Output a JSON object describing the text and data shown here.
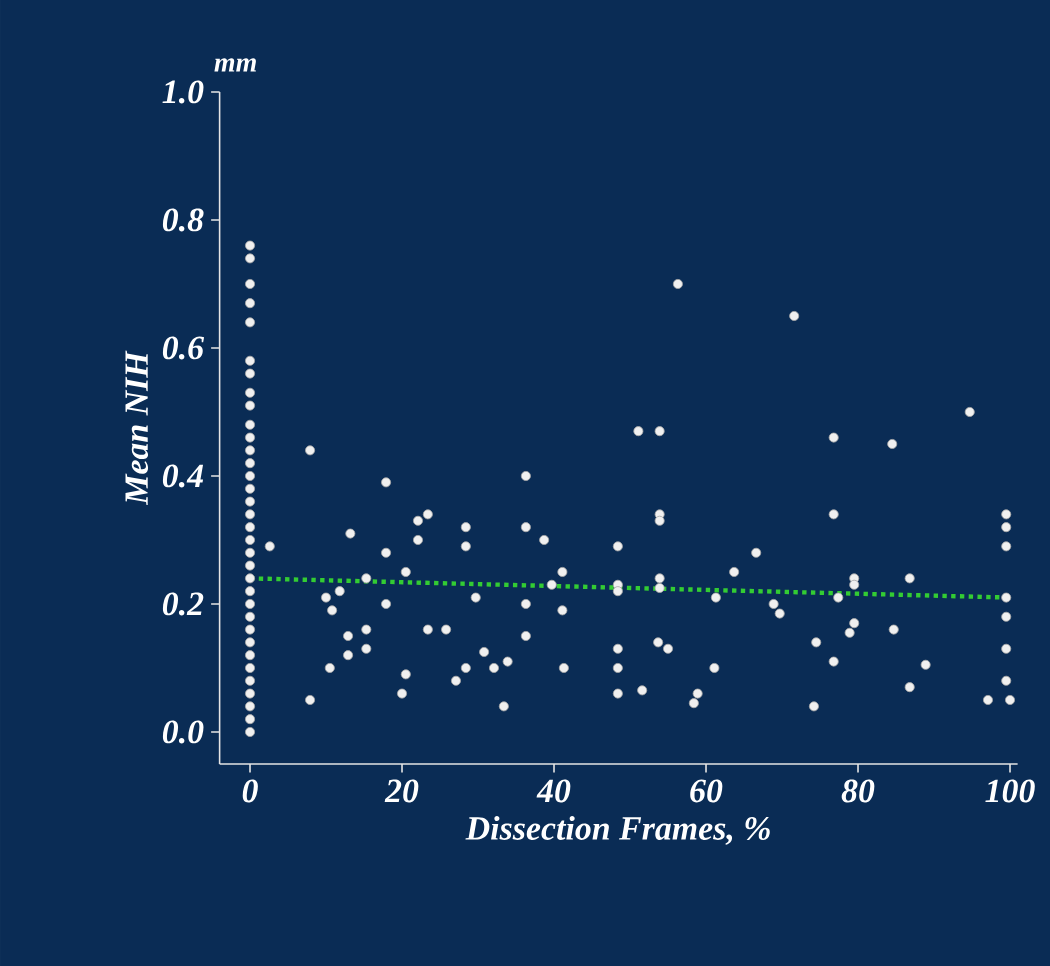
{
  "chart_data": {
    "type": "scatter",
    "xlabel": "Dissection Frames, %",
    "ylabel": "Mean NIH",
    "annotations": [
      "mm"
    ],
    "xlim": [
      -4,
      101
    ],
    "ylim": [
      -0.05,
      1.0
    ],
    "xticks": [
      0,
      20,
      40,
      60,
      80,
      100
    ],
    "yticks": [
      {
        "value": 0,
        "label": "0.0"
      },
      {
        "value": 0.2,
        "label": "0.2"
      },
      {
        "value": 0.4,
        "label": "0.4"
      },
      {
        "value": 0.6,
        "label": "0.6"
      },
      {
        "value": 0.8,
        "label": "0.8"
      },
      {
        "value": 1.0,
        "label": "1.0"
      }
    ],
    "grid": false,
    "series": [
      {
        "color": "#f0f0f0",
        "marker": "circle",
        "x": [
          0,
          0,
          0,
          0,
          0,
          0,
          0,
          0,
          0,
          0,
          0,
          0,
          0,
          0,
          0,
          0,
          0,
          0,
          0,
          0,
          0,
          0,
          0,
          0,
          0,
          0,
          0,
          0,
          0,
          0,
          0,
          0,
          0,
          0
        ],
        "values": [
          0.76,
          0.74,
          0.7,
          0.67,
          0.64,
          0.58,
          0.56,
          0.53,
          0.51,
          0.48,
          0.46,
          0.44,
          0.42,
          0.4,
          0.38,
          0.36,
          0.34,
          0.32,
          0.3,
          0.28,
          0.26,
          0.24,
          0.22,
          0.2,
          0.18,
          0.16,
          0.14,
          0.12,
          0.1,
          0.08,
          0.06,
          0.04,
          0.02,
          0.0
        ]
      },
      {
        "color": "#f0f0f0",
        "marker": "circle",
        "x": [
          7.9,
          2.6,
          17.9,
          13.2,
          23.4,
          22.1,
          22.1,
          28.4,
          28.4,
          17.9,
          20.5,
          15.3,
          10.0,
          11.8,
          10.8,
          17.9,
          29.7,
          12.9,
          15.3,
          23.4,
          25.8,
          12.9,
          15.3,
          10.5,
          20.5,
          28.4,
          27.1,
          20.0,
          7.9,
          56.3,
          51.1,
          53.9,
          36.3,
          36.3,
          38.7,
          53.9,
          53.9,
          48.4,
          63.7,
          41.1,
          39.7,
          48.4,
          48.4,
          53.9,
          53.9,
          36.3,
          41.1,
          61.3,
          36.3,
          30.8,
          33.9,
          32.1,
          41.3,
          48.4,
          48.4,
          53.7,
          55.0,
          61.1,
          48.4,
          51.6,
          58.9,
          58.4,
          33.4,
          71.6,
          94.7,
          76.8,
          84.5,
          76.8,
          99.5,
          99.5,
          99.5,
          66.6,
          86.8,
          79.5,
          77.4,
          79.5,
          99.5,
          68.9,
          69.7,
          79.5,
          78.9,
          84.7,
          99.5,
          74.5,
          99.5,
          76.8,
          88.9,
          86.8,
          99.5,
          97.1,
          100,
          74.2
        ],
        "values": [
          0.44,
          0.29,
          0.39,
          0.31,
          0.34,
          0.33,
          0.3,
          0.32,
          0.29,
          0.28,
          0.25,
          0.24,
          0.21,
          0.22,
          0.19,
          0.2,
          0.21,
          0.15,
          0.16,
          0.16,
          0.16,
          0.12,
          0.13,
          0.1,
          0.09,
          0.1,
          0.08,
          0.06,
          0.05,
          0.7,
          0.47,
          0.47,
          0.4,
          0.32,
          0.3,
          0.34,
          0.33,
          0.29,
          0.25,
          0.25,
          0.23,
          0.23,
          0.22,
          0.24,
          0.225,
          0.2,
          0.19,
          0.21,
          0.15,
          0.125,
          0.11,
          0.1,
          0.1,
          0.13,
          0.1,
          0.14,
          0.13,
          0.1,
          0.06,
          0.065,
          0.06,
          0.045,
          0.04,
          0.65,
          0.5,
          0.46,
          0.45,
          0.34,
          0.34,
          0.32,
          0.29,
          0.28,
          0.24,
          0.24,
          0.21,
          0.23,
          0.21,
          0.2,
          0.185,
          0.17,
          0.155,
          0.16,
          0.18,
          0.14,
          0.13,
          0.11,
          0.105,
          0.07,
          0.08,
          0.05,
          0.05,
          0.04
        ]
      },
      {
        "type": "line",
        "color": "#33cc33",
        "line_style": "dotted",
        "marker": "none",
        "x": [
          0,
          100
        ],
        "values": [
          0.24,
          0.21
        ]
      }
    ]
  }
}
